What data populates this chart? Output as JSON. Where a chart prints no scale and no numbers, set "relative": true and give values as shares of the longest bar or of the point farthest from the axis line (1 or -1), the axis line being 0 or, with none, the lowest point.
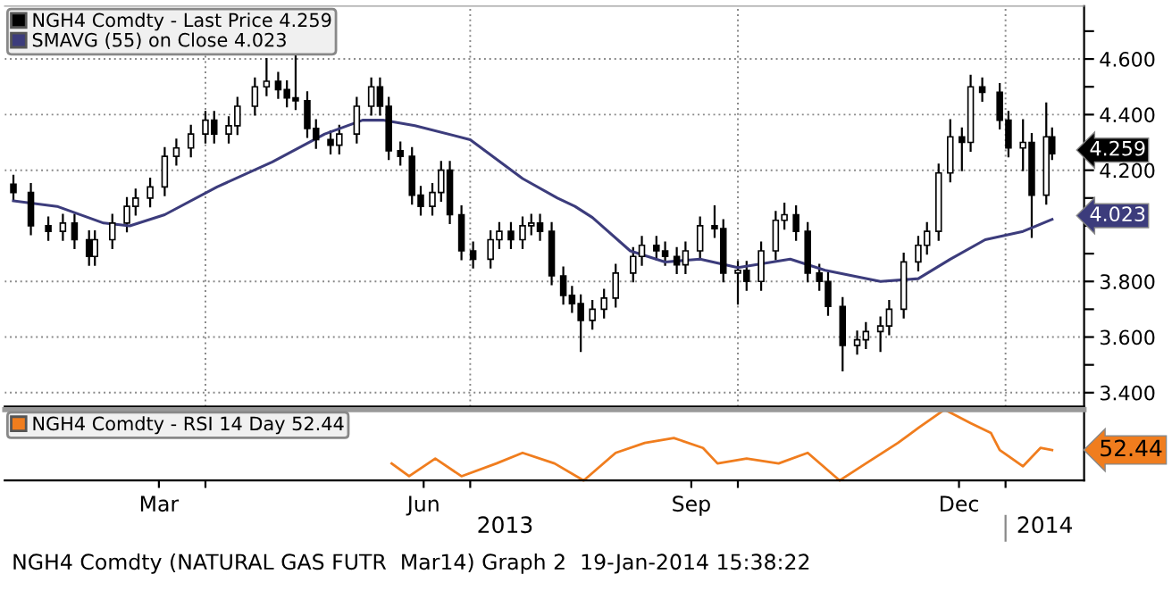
{
  "chart_data": [
    {
      "type": "candlestick",
      "xlim": [
        "2013-01-22",
        "2014-01-28"
      ],
      "ylim": [
        3.35,
        4.79
      ],
      "tick_labels": "y",
      "grid": true,
      "legend": "top left",
      "xticks": [
        {
          "value": "2013-04-01",
          "label": null
        },
        {
          "value": "2013-07-01",
          "label": null
        },
        {
          "value": "2013-10-01",
          "label": null
        },
        {
          "value": "2014-01-01",
          "label": null
        }
      ],
      "yticks": [
        {
          "value": 3.4,
          "label": "3.400"
        },
        {
          "value": 3.5,
          "label": null
        },
        {
          "value": 3.6,
          "label": "3.600"
        },
        {
          "value": 3.7,
          "label": null
        },
        {
          "value": 3.8,
          "label": "3.800"
        },
        {
          "value": 3.9,
          "label": null
        },
        {
          "value": 4.0,
          "label": null
        },
        {
          "value": 4.1,
          "label": null
        },
        {
          "value": 4.2,
          "label": "4.200"
        },
        {
          "value": 4.3,
          "label": null
        },
        {
          "value": 4.4,
          "label": "4.400"
        },
        {
          "value": 4.5,
          "label": null
        },
        {
          "value": 4.6,
          "label": "4.600"
        },
        {
          "value": 4.7,
          "label": null
        }
      ],
      "series": [
        {
          "name": "NGH4 Comdty - Last Price 4.259",
          "type": "candlestick",
          "color": "#000000",
          "x": [
            "2013-01-25",
            "2013-01-31",
            "2013-02-06",
            "2013-02-11",
            "2013-02-15",
            "2013-02-20",
            "2013-02-22",
            "2013-02-28",
            "2013-03-05",
            "2013-03-08",
            "2013-03-13",
            "2013-03-18",
            "2013-03-22",
            "2013-03-27",
            "2013-04-01",
            "2013-04-04",
            "2013-04-09",
            "2013-04-12",
            "2013-04-18",
            "2013-04-22",
            "2013-04-26",
            "2013-04-29",
            "2013-05-02",
            "2013-05-06",
            "2013-05-09",
            "2013-05-14",
            "2013-05-17",
            "2013-05-23",
            "2013-05-28",
            "2013-05-31",
            "2013-06-03",
            "2013-06-07",
            "2013-06-11",
            "2013-06-14",
            "2013-06-18",
            "2013-06-21",
            "2013-06-24",
            "2013-06-28",
            "2013-07-02",
            "2013-07-08",
            "2013-07-11",
            "2013-07-15",
            "2013-07-19",
            "2013-07-22",
            "2013-07-25",
            "2013-07-29",
            "2013-08-02",
            "2013-08-05",
            "2013-08-08",
            "2013-08-12",
            "2013-08-16",
            "2013-08-20",
            "2013-08-26",
            "2013-08-29",
            "2013-09-03",
            "2013-09-06",
            "2013-09-10",
            "2013-09-13",
            "2013-09-18",
            "2013-09-23",
            "2013-09-26",
            "2013-10-01",
            "2013-10-04",
            "2013-10-09",
            "2013-10-14",
            "2013-10-17",
            "2013-10-21",
            "2013-10-25",
            "2013-10-29",
            "2013-11-01",
            "2013-11-06",
            "2013-11-11",
            "2013-11-14",
            "2013-11-19",
            "2013-11-22",
            "2013-11-27",
            "2013-12-02",
            "2013-12-05",
            "2013-12-09",
            "2013-12-13",
            "2013-12-17",
            "2013-12-20",
            "2013-12-24",
            "2013-12-30",
            "2014-01-02",
            "2014-01-07",
            "2014-01-10",
            "2014-01-15",
            "2014-01-17"
          ],
          "ohlc": [
            [
              4.15,
              4.18,
              4.09,
              4.12
            ],
            [
              4.12,
              4.15,
              3.97,
              4.0
            ],
            [
              4.0,
              4.03,
              3.95,
              3.98
            ],
            [
              3.98,
              4.04,
              3.95,
              4.01
            ],
            [
              4.01,
              4.04,
              3.92,
              3.95
            ],
            [
              3.95,
              3.98,
              3.86,
              3.89
            ],
            [
              3.89,
              3.98,
              3.86,
              3.95
            ],
            [
              3.95,
              4.04,
              3.92,
              4.01
            ],
            [
              4.01,
              4.1,
              3.98,
              4.07
            ],
            [
              4.07,
              4.13,
              4.04,
              4.1
            ],
            [
              4.1,
              4.17,
              4.07,
              4.14
            ],
            [
              4.14,
              4.28,
              4.11,
              4.25
            ],
            [
              4.25,
              4.31,
              4.22,
              4.28
            ],
            [
              4.28,
              4.36,
              4.25,
              4.33
            ],
            [
              4.33,
              4.41,
              4.3,
              4.38
            ],
            [
              4.38,
              4.41,
              4.3,
              4.33
            ],
            [
              4.33,
              4.39,
              4.3,
              4.36
            ],
            [
              4.36,
              4.46,
              4.33,
              4.43
            ],
            [
              4.43,
              4.53,
              4.4,
              4.5
            ],
            [
              4.5,
              4.6,
              4.47,
              4.52
            ],
            [
              4.52,
              4.55,
              4.46,
              4.49
            ],
            [
              4.49,
              4.52,
              4.43,
              4.46
            ],
            [
              4.46,
              4.62,
              4.42,
              4.45
            ],
            [
              4.45,
              4.48,
              4.32,
              4.35
            ],
            [
              4.35,
              4.38,
              4.28,
              4.31
            ],
            [
              4.31,
              4.34,
              4.26,
              4.29
            ],
            [
              4.29,
              4.36,
              4.26,
              4.33
            ],
            [
              4.33,
              4.46,
              4.3,
              4.43
            ],
            [
              4.43,
              4.53,
              4.4,
              4.5
            ],
            [
              4.5,
              4.53,
              4.4,
              4.43
            ],
            [
              4.43,
              4.46,
              4.24,
              4.27
            ],
            [
              4.27,
              4.3,
              4.22,
              4.25
            ],
            [
              4.25,
              4.28,
              4.08,
              4.11
            ],
            [
              4.11,
              4.14,
              4.04,
              4.07
            ],
            [
              4.07,
              4.15,
              4.04,
              4.12
            ],
            [
              4.12,
              4.23,
              4.09,
              4.2
            ],
            [
              4.2,
              4.23,
              4.01,
              4.04
            ],
            [
              4.04,
              4.07,
              3.88,
              3.91
            ],
            [
              3.91,
              3.94,
              3.85,
              3.88
            ],
            [
              3.88,
              3.98,
              3.85,
              3.95
            ],
            [
              3.95,
              4.01,
              3.92,
              3.98
            ],
            [
              3.98,
              4.01,
              3.92,
              3.95
            ],
            [
              3.95,
              4.03,
              3.92,
              4.0
            ],
            [
              4.0,
              4.04,
              3.97,
              4.01
            ],
            [
              4.01,
              4.04,
              3.95,
              3.98
            ],
            [
              3.98,
              4.01,
              3.79,
              3.82
            ],
            [
              3.82,
              3.85,
              3.72,
              3.75
            ],
            [
              3.75,
              3.78,
              3.69,
              3.72
            ],
            [
              3.72,
              3.75,
              3.55,
              3.66
            ],
            [
              3.66,
              3.73,
              3.63,
              3.7
            ],
            [
              3.7,
              3.77,
              3.67,
              3.74
            ],
            [
              3.74,
              3.86,
              3.71,
              3.83
            ],
            [
              3.83,
              3.92,
              3.8,
              3.89
            ],
            [
              3.89,
              3.96,
              3.86,
              3.93
            ],
            [
              3.93,
              3.96,
              3.88,
              3.91
            ],
            [
              3.91,
              3.94,
              3.86,
              3.89
            ],
            [
              3.89,
              3.92,
              3.83,
              3.86
            ],
            [
              3.86,
              3.94,
              3.83,
              3.91
            ],
            [
              3.91,
              4.03,
              3.88,
              4.0
            ],
            [
              4.0,
              4.07,
              3.96,
              3.99
            ],
            [
              3.99,
              4.02,
              3.8,
              3.83
            ],
            [
              3.83,
              3.87,
              3.72,
              3.84
            ],
            [
              3.84,
              3.87,
              3.77,
              3.8
            ],
            [
              3.8,
              3.94,
              3.77,
              3.91
            ],
            [
              3.91,
              4.05,
              3.88,
              4.02
            ],
            [
              4.02,
              4.08,
              3.99,
              4.04
            ],
            [
              4.04,
              4.07,
              3.95,
              3.98
            ],
            [
              3.98,
              4.01,
              3.8,
              3.83
            ],
            [
              3.83,
              3.86,
              3.77,
              3.8
            ],
            [
              3.8,
              3.83,
              3.68,
              3.71
            ],
            [
              3.71,
              3.74,
              3.48,
              3.57
            ],
            [
              3.57,
              3.62,
              3.54,
              3.59
            ],
            [
              3.59,
              3.65,
              3.56,
              3.62
            ],
            [
              3.62,
              3.67,
              3.55,
              3.64
            ],
            [
              3.64,
              3.73,
              3.61,
              3.7
            ],
            [
              3.7,
              3.9,
              3.67,
              3.87
            ],
            [
              3.87,
              3.96,
              3.84,
              3.93
            ],
            [
              3.93,
              4.01,
              3.9,
              3.98
            ],
            [
              3.98,
              4.22,
              3.95,
              4.19
            ],
            [
              4.19,
              4.38,
              4.16,
              4.32
            ],
            [
              4.32,
              4.35,
              4.2,
              4.3
            ],
            [
              4.3,
              4.54,
              4.27,
              4.5
            ],
            [
              4.5,
              4.53,
              4.45,
              4.48
            ],
            [
              4.48,
              4.51,
              4.35,
              4.38
            ],
            [
              4.38,
              4.41,
              4.25,
              4.28
            ],
            [
              4.28,
              4.38,
              4.2,
              4.3
            ],
            [
              4.3,
              4.33,
              3.96,
              4.11
            ],
            [
              4.11,
              4.44,
              4.08,
              4.32
            ],
            [
              4.32,
              4.35,
              4.24,
              4.259
            ]
          ]
        },
        {
          "name": "SMAVG (55) on Close 4.023",
          "type": "line",
          "color": "#3c3c7c",
          "x": [
            "2013-01-25",
            "2013-02-09",
            "2013-02-25",
            "2013-03-06",
            "2013-03-18",
            "2013-04-05",
            "2013-04-24",
            "2013-05-12",
            "2013-05-25",
            "2013-06-01",
            "2013-06-12",
            "2013-07-01",
            "2013-07-19",
            "2013-07-31",
            "2013-08-06",
            "2013-08-12",
            "2013-08-25",
            "2013-09-06",
            "2013-09-18",
            "2013-10-01",
            "2013-10-19",
            "2013-10-31",
            "2013-11-19",
            "2013-12-02",
            "2013-12-13",
            "2013-12-25",
            "2014-01-07",
            "2014-01-17"
          ],
          "values": [
            4.09,
            4.07,
            4.01,
            4.0,
            4.04,
            4.14,
            4.23,
            4.33,
            4.38,
            4.38,
            4.36,
            4.31,
            4.17,
            4.1,
            4.07,
            4.03,
            3.91,
            3.87,
            3.88,
            3.85,
            3.88,
            3.84,
            3.8,
            3.81,
            3.88,
            3.95,
            3.98,
            4.023
          ]
        }
      ],
      "annotations": [
        {
          "text": "4.259",
          "x": "2014-01-17",
          "y": 4.259
        },
        {
          "text": "4.023",
          "x": "2014-01-17",
          "y": 4.023
        },
        "NGH4 Comdty (NATURAL GAS FUTR  Mar14) Graph 2  19-Jan-2014 15:38:22"
      ]
    },
    {
      "type": "line",
      "relative": true,
      "xlim": [
        "2013-01-22",
        "2014-01-28"
      ],
      "tick_labels": "x",
      "legend": "top left",
      "xticks": [
        {
          "value": "2013-03-16",
          "label": "Mar"
        },
        {
          "value": "2013-04-01",
          "label": null
        },
        {
          "value": "2013-06-15",
          "label": "Jun"
        },
        {
          "value": "2013-07-01",
          "label": null
        },
        {
          "value": "2013-09-15",
          "label": "Sep"
        },
        {
          "value": "2013-10-01",
          "label": null
        },
        {
          "value": "2013-12-16",
          "label": "Dec"
        },
        {
          "value": "2014-01-01",
          "label": null
        }
      ],
      "series": [
        {
          "name": "NGH4 Comdty - RSI 14 Day 52.44",
          "color": "#f07d1e",
          "x": [
            "2013-06-04",
            "2013-06-10",
            "2013-06-19",
            "2013-06-28",
            "2013-07-10",
            "2013-07-19",
            "2013-07-30",
            "2013-08-09",
            "2013-08-20",
            "2013-08-30",
            "2013-09-09",
            "2013-09-19",
            "2013-09-24",
            "2013-10-04",
            "2013-10-15",
            "2013-10-25",
            "2013-11-05",
            "2013-11-14",
            "2013-11-25",
            "2013-12-02",
            "2013-12-11",
            "2013-12-20",
            "2013-12-27",
            "2013-12-30",
            "2014-01-07",
            "2014-01-13",
            "2014-01-17"
          ],
          "values": [
            0.24,
            0.06,
            0.31,
            0.06,
            0.24,
            0.39,
            0.24,
            0,
            0.39,
            0.53,
            0.6,
            0.46,
            0.24,
            0.31,
            0.24,
            0.39,
            0,
            0.24,
            0.53,
            0.74,
            1,
            0.81,
            0.67,
            0.43,
            0.2,
            0.46,
            0.43
          ]
        }
      ],
      "annotations": [
        "52.44",
        "2013",
        "2014"
      ]
    }
  ]
}
